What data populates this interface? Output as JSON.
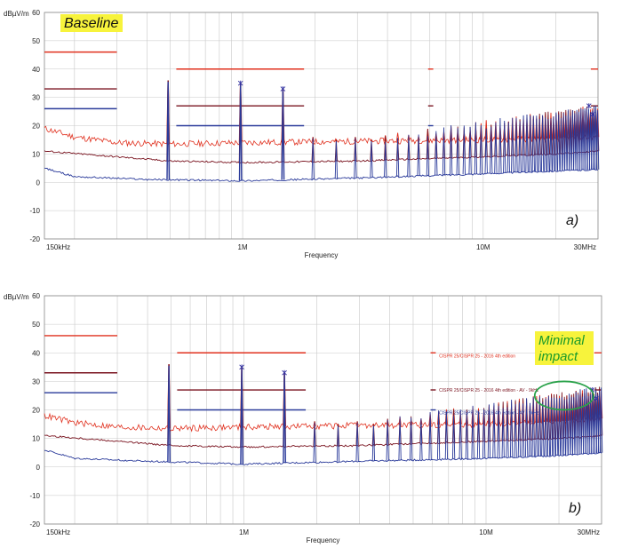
{
  "chart_data": [
    {
      "type": "line",
      "panel_tag": "a)",
      "annotation": {
        "text": "Baseline",
        "highlight": "#f7f33c",
        "text_color": "#1a1a8a"
      },
      "ylabel": "dBµV/m",
      "xlabel": "Frequency",
      "xscale": "log",
      "xlim": [
        0.15,
        30
      ],
      "ylim": [
        -20,
        60
      ],
      "yticks": [
        60,
        50,
        40,
        30,
        20,
        10,
        0,
        -10,
        -20
      ],
      "xticks": [
        {
          "f": 0.15,
          "label": "150kHz"
        },
        {
          "f": 1,
          "label": "1M"
        },
        {
          "f": 10,
          "label": "10M"
        },
        {
          "f": 30,
          "label": "30MHz"
        }
      ],
      "grid": true,
      "legend": [],
      "limit_lines": [
        {
          "color": "#e0301e",
          "segments": [
            [
              0.15,
              0.3,
              46
            ],
            [
              0.53,
              1.8,
              40
            ],
            [
              5.9,
              6.2,
              40
            ],
            [
              28,
              30,
              40
            ]
          ]
        },
        {
          "color": "#7a1420",
          "segments": [
            [
              0.15,
              0.3,
              33
            ],
            [
              0.53,
              1.8,
              27
            ],
            [
              5.9,
              6.2,
              27
            ],
            [
              28,
              30,
              27
            ]
          ]
        },
        {
          "color": "#2a3a9a",
          "segments": [
            [
              0.15,
              0.3,
              26
            ],
            [
              0.53,
              1.8,
              20
            ],
            [
              5.9,
              6.2,
              20
            ],
            [
              28,
              30,
              20
            ]
          ]
        }
      ],
      "series": [
        {
          "color": "#e0301e",
          "values": [
            [
              0.15,
              19
            ],
            [
              0.2,
              16
            ],
            [
              0.3,
              14
            ],
            [
              0.5,
              13.5
            ],
            [
              1,
              14
            ],
            [
              3,
              14.5
            ],
            [
              10,
              15
            ],
            [
              20,
              15.5
            ],
            [
              30,
              16
            ]
          ]
        },
        {
          "color": "#7a1420",
          "values": [
            [
              0.15,
              11
            ],
            [
              0.3,
              9
            ],
            [
              0.5,
              7.5
            ],
            [
              1,
              7
            ],
            [
              3,
              7.5
            ],
            [
              10,
              9
            ],
            [
              20,
              10
            ],
            [
              30,
              11
            ]
          ]
        },
        {
          "color": "#2a3a9a",
          "values": [
            [
              0.15,
              5
            ],
            [
              0.2,
              2
            ],
            [
              0.4,
              1
            ],
            [
              1,
              0.5
            ],
            [
              3,
              1.5
            ],
            [
              10,
              3
            ],
            [
              20,
              4
            ],
            [
              30,
              4.5
            ]
          ]
        }
      ],
      "spike_fundamental": 0.49,
      "spike_peaks": [
        [
          0.49,
          36
        ],
        [
          0.98,
          35
        ],
        [
          1.47,
          33
        ],
        [
          1.96,
          16
        ],
        [
          2.45,
          15
        ],
        [
          2.94,
          16
        ],
        [
          3.43,
          15
        ]
      ],
      "spike_level_far": 18,
      "marker_points": [
        [
          0.98,
          35
        ],
        [
          1.47,
          33
        ],
        [
          27.5,
          27
        ],
        [
          28.5,
          24
        ]
      ]
    },
    {
      "type": "line",
      "panel_tag": "b)",
      "annotation": {
        "text": "Minimal impact",
        "lines": [
          "Minimal",
          "impact"
        ],
        "highlight": "#f7f33c",
        "text_color": "#1a9a2a"
      },
      "ylabel": "dBµV/m",
      "xlabel": "Frequency",
      "xscale": "log",
      "xlim": [
        0.15,
        30
      ],
      "ylim": [
        -20,
        60
      ],
      "yticks": [
        60,
        50,
        40,
        30,
        20,
        10,
        0,
        -10,
        -20
      ],
      "xticks": [
        {
          "f": 0.15,
          "label": "150kHz"
        },
        {
          "f": 1,
          "label": "1M"
        },
        {
          "f": 10,
          "label": "10M"
        },
        {
          "f": 30,
          "label": "30MHz"
        }
      ],
      "grid": true,
      "legend": [
        {
          "text": "CISPR 25/CISPR 25 - 2016 4th edition",
          "color": "#e0301e",
          "y": 39
        },
        {
          "text": "CISPR 25/CISPR 25 - 2016 4th edition - AV - 9kHz",
          "color": "#7a1420",
          "y": 27
        },
        {
          "text": "CISPR 25/CISPR 25 - 2016 4th edition - AV - 9kHz",
          "color": "#2a3a9a",
          "y": 19
        }
      ],
      "highlight_ellipse": {
        "cx_f": 21,
        "cy": 25,
        "color": "#2aa24a"
      },
      "limit_lines": [
        {
          "color": "#e0301e",
          "segments": [
            [
              0.15,
              0.3,
              46
            ],
            [
              0.53,
              1.8,
              40
            ],
            [
              5.9,
              6.2,
              40
            ],
            [
              28,
              30,
              40
            ]
          ]
        },
        {
          "color": "#7a1420",
          "segments": [
            [
              0.15,
              0.3,
              33
            ],
            [
              0.53,
              1.8,
              27
            ],
            [
              5.9,
              6.2,
              27
            ],
            [
              28,
              30,
              27
            ]
          ]
        },
        {
          "color": "#2a3a9a",
          "segments": [
            [
              0.15,
              0.3,
              26
            ],
            [
              0.53,
              1.8,
              20
            ],
            [
              5.9,
              6.2,
              20
            ],
            [
              28,
              30,
              20
            ]
          ]
        }
      ],
      "series": [
        {
          "color": "#e0301e",
          "values": [
            [
              0.15,
              18
            ],
            [
              0.2,
              15.5
            ],
            [
              0.3,
              14
            ],
            [
              0.5,
              13.5
            ],
            [
              1,
              14
            ],
            [
              3,
              14.5
            ],
            [
              10,
              15
            ],
            [
              20,
              16
            ],
            [
              30,
              17
            ]
          ]
        },
        {
          "color": "#7a1420",
          "values": [
            [
              0.15,
              11
            ],
            [
              0.3,
              9
            ],
            [
              0.5,
              7.5
            ],
            [
              1,
              7
            ],
            [
              3,
              7.5
            ],
            [
              10,
              9
            ],
            [
              20,
              10
            ],
            [
              30,
              11
            ]
          ]
        },
        {
          "color": "#2a3a9a",
          "values": [
            [
              0.15,
              6
            ],
            [
              0.2,
              3
            ],
            [
              0.4,
              2
            ],
            [
              1,
              1
            ],
            [
              3,
              2
            ],
            [
              10,
              3
            ],
            [
              20,
              4
            ],
            [
              30,
              5
            ]
          ]
        }
      ],
      "spike_fundamental": 0.49,
      "spike_peaks": [
        [
          0.49,
          36
        ],
        [
          0.98,
          35
        ],
        [
          1.47,
          33
        ],
        [
          1.96,
          16
        ],
        [
          2.45,
          15
        ],
        [
          2.94,
          16
        ],
        [
          3.43,
          15
        ]
      ],
      "spike_level_far": 19,
      "marker_points": [
        [
          0.98,
          35
        ],
        [
          1.47,
          33
        ],
        [
          27.5,
          27
        ],
        [
          28.5,
          24
        ]
      ]
    }
  ]
}
